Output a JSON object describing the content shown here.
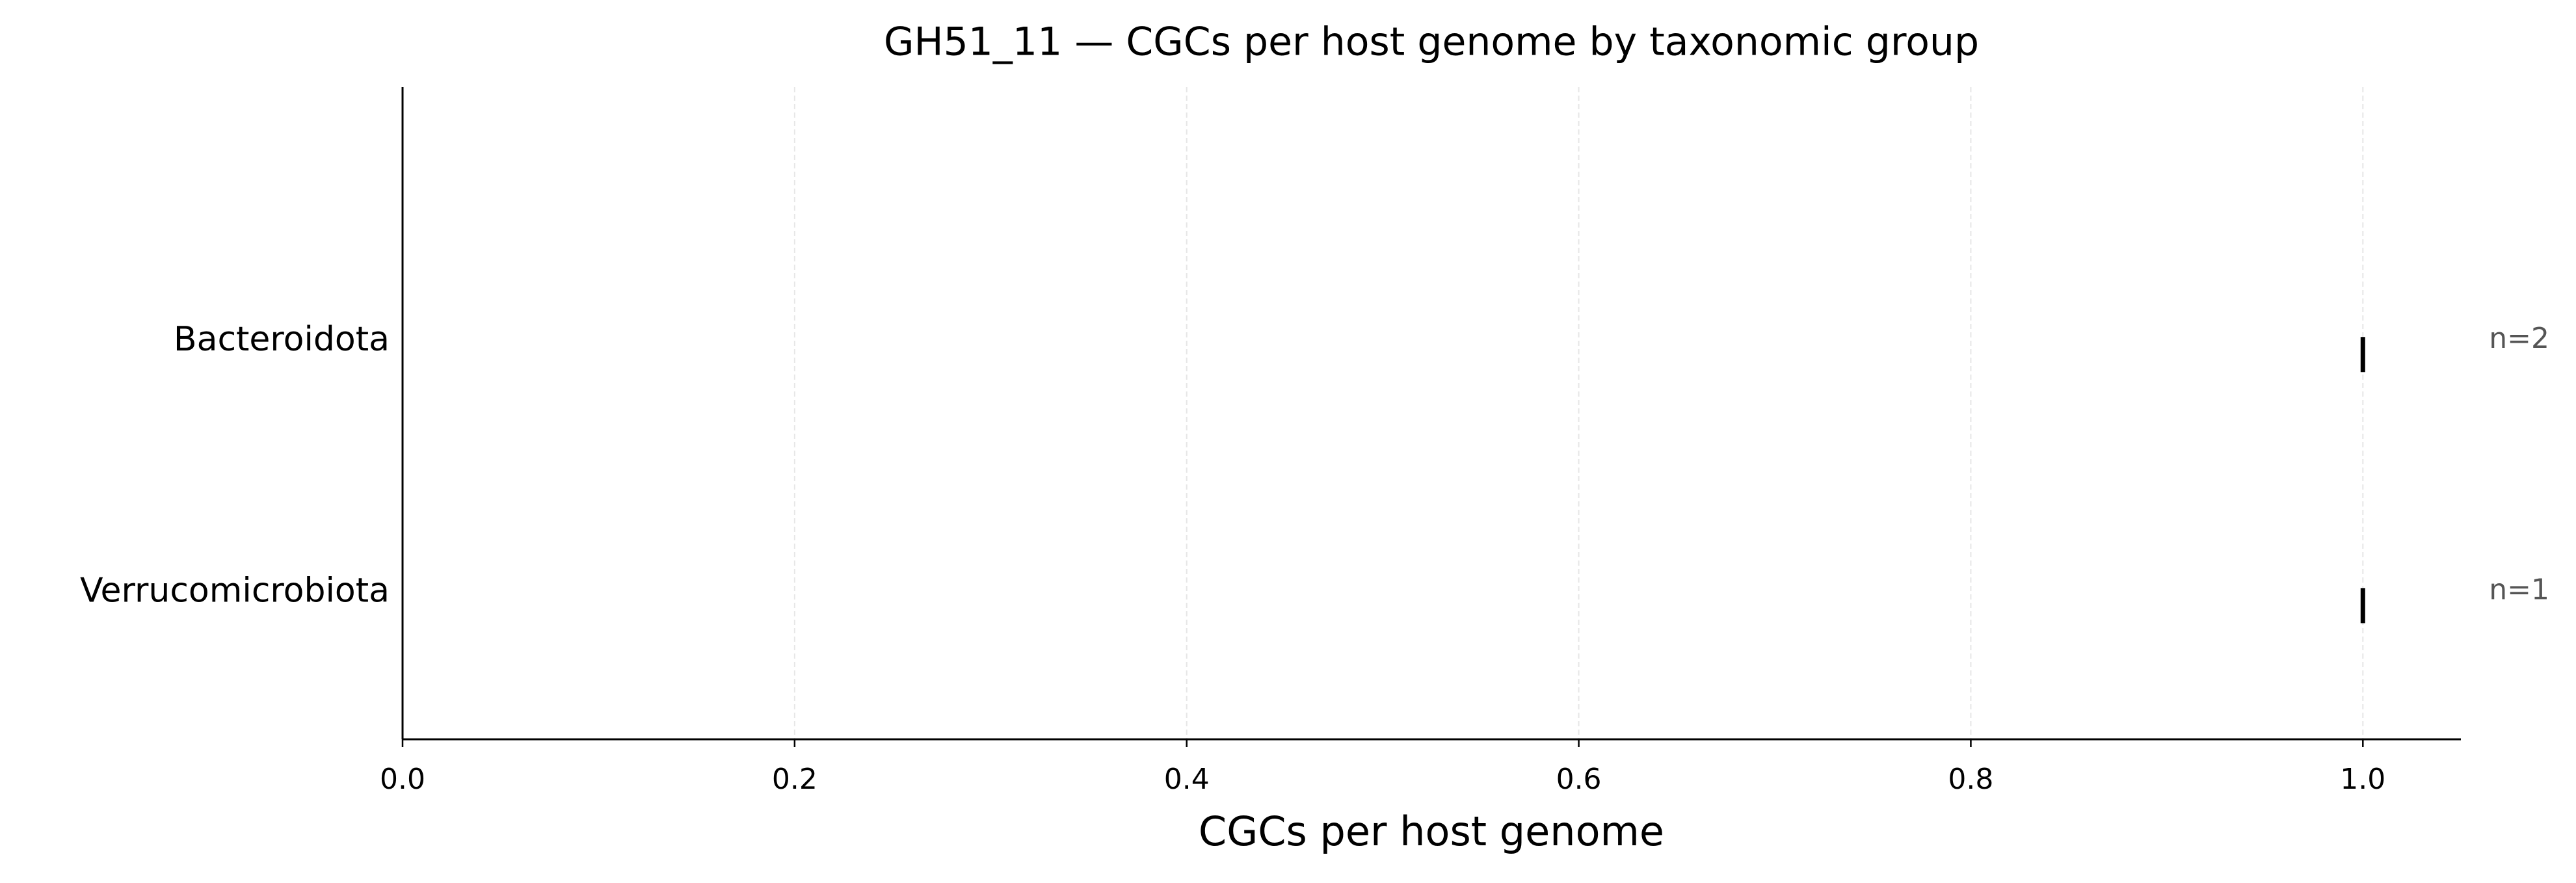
{
  "chart_data": {
    "type": "strip",
    "title": "GH51_11 — CGCs per host genome by taxonomic group",
    "xlabel": "CGCs per host genome",
    "categories": [
      "Bacteroidota",
      "Verrucomicrobiota"
    ],
    "values": [
      1.0,
      1.0
    ],
    "annotations": [
      "n=2",
      "n=1"
    ],
    "color": "#000000",
    "xlim": [
      0,
      1.05
    ],
    "xticks": [
      {
        "value": 0,
        "label": "0.0"
      },
      0.2,
      0.4,
      0.6,
      0.8,
      {
        "value": 1,
        "label": "1.0"
      }
    ],
    "grid": true
  }
}
